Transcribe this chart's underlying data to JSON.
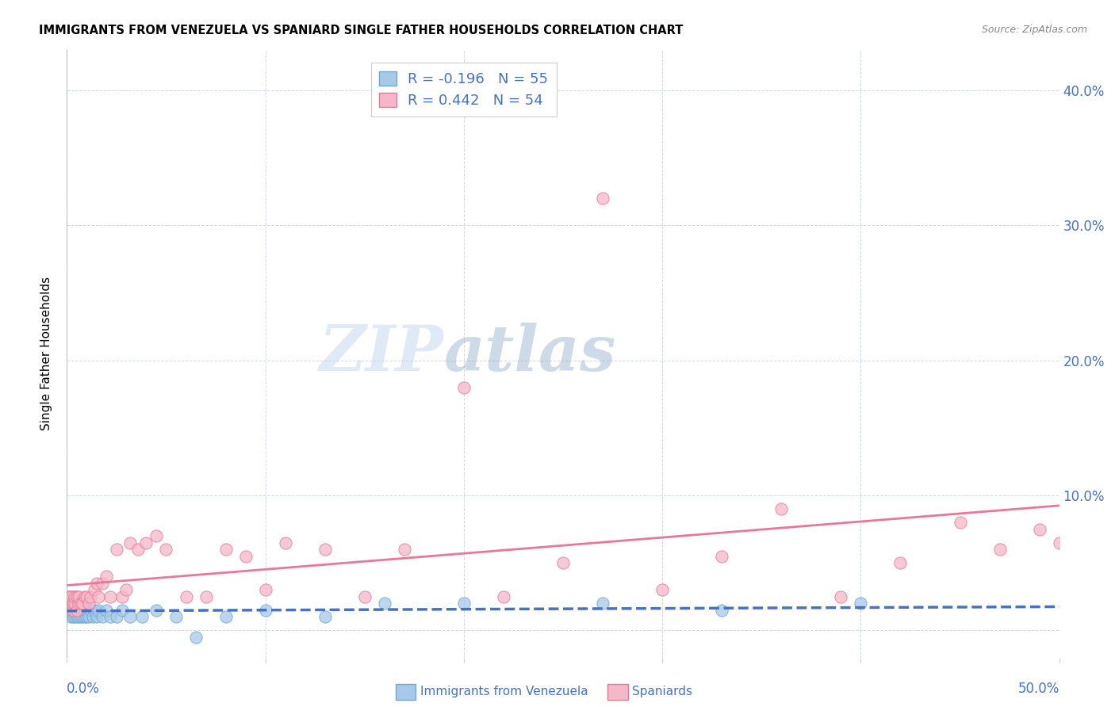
{
  "title": "IMMIGRANTS FROM VENEZUELA VS SPANIARD SINGLE FATHER HOUSEHOLDS CORRELATION CHART",
  "source": "Source: ZipAtlas.com",
  "ylabel": "Single Father Households",
  "legend_label1": "Immigrants from Venezuela",
  "legend_label2": "Spaniards",
  "R1": -0.196,
  "N1": 55,
  "R2": 0.442,
  "N2": 54,
  "color_blue_fill": "#a8c8ea",
  "color_blue_edge": "#6fa8d0",
  "color_pink_fill": "#f5b8c8",
  "color_pink_edge": "#e87898",
  "color_blue_line": "#4472c4",
  "color_pink_line": "#e87898",
  "color_text_blue": "#4472c4",
  "watermark_zip": "ZIP",
  "watermark_atlas": "atlas",
  "xlim": [
    0.0,
    0.5
  ],
  "ylim": [
    -0.02,
    0.43
  ],
  "yticks": [
    0.0,
    0.1,
    0.2,
    0.3,
    0.4
  ],
  "ytick_labels": [
    "",
    "10.0%",
    "20.0%",
    "30.0%",
    "40.0%"
  ],
  "blue_x": [
    0.001,
    0.001,
    0.001,
    0.002,
    0.002,
    0.002,
    0.002,
    0.003,
    0.003,
    0.003,
    0.003,
    0.004,
    0.004,
    0.004,
    0.004,
    0.005,
    0.005,
    0.005,
    0.005,
    0.006,
    0.006,
    0.006,
    0.007,
    0.007,
    0.007,
    0.008,
    0.008,
    0.009,
    0.009,
    0.01,
    0.01,
    0.011,
    0.012,
    0.013,
    0.014,
    0.015,
    0.016,
    0.018,
    0.02,
    0.022,
    0.025,
    0.028,
    0.032,
    0.038,
    0.045,
    0.055,
    0.065,
    0.08,
    0.1,
    0.13,
    0.16,
    0.2,
    0.27,
    0.33,
    0.4
  ],
  "blue_y": [
    0.015,
    0.02,
    0.025,
    0.01,
    0.015,
    0.02,
    0.025,
    0.01,
    0.015,
    0.02,
    0.025,
    0.01,
    0.015,
    0.02,
    0.025,
    0.01,
    0.015,
    0.02,
    0.025,
    0.01,
    0.015,
    0.02,
    0.01,
    0.015,
    0.02,
    0.01,
    0.015,
    0.01,
    0.015,
    0.01,
    0.015,
    0.01,
    0.015,
    0.01,
    0.015,
    0.01,
    0.015,
    0.01,
    0.015,
    0.01,
    0.01,
    0.015,
    0.01,
    0.01,
    0.015,
    0.01,
    -0.005,
    0.01,
    0.015,
    0.01,
    0.02,
    0.02,
    0.02,
    0.015,
    0.02
  ],
  "pink_x": [
    0.001,
    0.001,
    0.002,
    0.002,
    0.003,
    0.003,
    0.004,
    0.004,
    0.005,
    0.005,
    0.006,
    0.006,
    0.007,
    0.008,
    0.009,
    0.01,
    0.011,
    0.012,
    0.014,
    0.015,
    0.016,
    0.018,
    0.02,
    0.022,
    0.025,
    0.028,
    0.03,
    0.032,
    0.036,
    0.04,
    0.045,
    0.05,
    0.06,
    0.07,
    0.08,
    0.09,
    0.1,
    0.11,
    0.13,
    0.15,
    0.17,
    0.2,
    0.22,
    0.25,
    0.27,
    0.3,
    0.33,
    0.36,
    0.39,
    0.42,
    0.45,
    0.47,
    0.49,
    0.5
  ],
  "pink_y": [
    0.02,
    0.025,
    0.02,
    0.025,
    0.015,
    0.02,
    0.02,
    0.025,
    0.015,
    0.025,
    0.02,
    0.025,
    0.02,
    0.02,
    0.025,
    0.025,
    0.02,
    0.025,
    0.03,
    0.035,
    0.025,
    0.035,
    0.04,
    0.025,
    0.06,
    0.025,
    0.03,
    0.065,
    0.06,
    0.065,
    0.07,
    0.06,
    0.025,
    0.025,
    0.06,
    0.055,
    0.03,
    0.065,
    0.06,
    0.025,
    0.06,
    0.18,
    0.025,
    0.05,
    0.32,
    0.03,
    0.055,
    0.09,
    0.025,
    0.05,
    0.08,
    0.06,
    0.075,
    0.065
  ]
}
